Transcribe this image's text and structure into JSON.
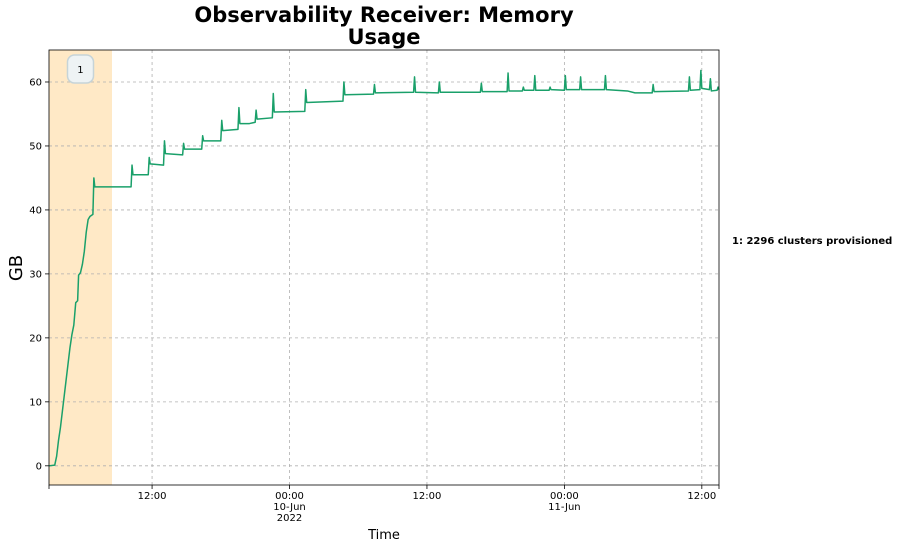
{
  "chart_data": {
    "type": "line",
    "title_lines": [
      "Observability Receiver: Memory",
      "Usage"
    ],
    "xlabel": "Time",
    "ylabel": "GB",
    "xlim": [
      "2022-06-09 03:00",
      "2022-06-11 13:30"
    ],
    "ylim": [
      -3,
      65
    ],
    "grid": true,
    "y_ticks": [
      0,
      10,
      20,
      30,
      40,
      50,
      60
    ],
    "x_ticks": [
      {
        "time": "2022-06-09 12:00",
        "lines": [
          "12:00"
        ]
      },
      {
        "time": "2022-06-10 00:00",
        "lines": [
          "00:00",
          "10-Jun",
          "2022"
        ]
      },
      {
        "time": "2022-06-10 12:00",
        "lines": [
          "12:00"
        ]
      },
      {
        "time": "2022-06-11 00:00",
        "lines": [
          "00:00",
          "11-Jun"
        ]
      },
      {
        "time": "2022-06-11 12:00",
        "lines": [
          "12:00"
        ]
      }
    ],
    "series": [
      {
        "color": "#1aa06a",
        "points": [
          [
            "2022-06-09 03:00",
            0.0
          ],
          [
            "2022-06-09 03:30",
            0.1
          ],
          [
            "2022-06-09 03:40",
            1.5
          ],
          [
            "2022-06-09 03:50",
            4.0
          ],
          [
            "2022-06-09 04:00",
            6.0
          ],
          [
            "2022-06-09 04:10",
            8.5
          ],
          [
            "2022-06-09 04:20",
            11.0
          ],
          [
            "2022-06-09 04:30",
            13.5
          ],
          [
            "2022-06-09 04:40",
            16.0
          ],
          [
            "2022-06-09 04:50",
            18.5
          ],
          [
            "2022-06-09 05:00",
            20.5
          ],
          [
            "2022-06-09 05:10",
            22.0
          ],
          [
            "2022-06-09 05:20",
            25.5
          ],
          [
            "2022-06-09 05:30",
            25.8
          ],
          [
            "2022-06-09 05:35",
            29.8
          ],
          [
            "2022-06-09 05:45",
            30.2
          ],
          [
            "2022-06-09 05:55",
            31.5
          ],
          [
            "2022-06-09 06:05",
            33.5
          ],
          [
            "2022-06-09 06:15",
            36.5
          ],
          [
            "2022-06-09 06:25",
            38.5
          ],
          [
            "2022-06-09 06:35",
            39.0
          ],
          [
            "2022-06-09 06:50",
            39.3
          ],
          [
            "2022-06-09 06:55",
            45.0
          ],
          [
            "2022-06-09 07:00",
            43.6
          ],
          [
            "2022-06-09 10:10",
            43.6
          ],
          [
            "2022-06-09 10:15",
            47.0
          ],
          [
            "2022-06-09 10:20",
            45.5
          ],
          [
            "2022-06-09 11:40",
            45.5
          ],
          [
            "2022-06-09 11:45",
            48.2
          ],
          [
            "2022-06-09 11:50",
            47.2
          ],
          [
            "2022-06-09 13:00",
            47.0
          ],
          [
            "2022-06-09 13:05",
            50.8
          ],
          [
            "2022-06-09 13:10",
            48.8
          ],
          [
            "2022-06-09 14:40",
            48.6
          ],
          [
            "2022-06-09 14:45",
            50.4
          ],
          [
            "2022-06-09 14:50",
            49.5
          ],
          [
            "2022-06-09 16:20",
            49.5
          ],
          [
            "2022-06-09 16:25",
            51.6
          ],
          [
            "2022-06-09 16:30",
            50.8
          ],
          [
            "2022-06-09 18:00",
            50.8
          ],
          [
            "2022-06-09 18:05",
            54.0
          ],
          [
            "2022-06-09 18:10",
            52.4
          ],
          [
            "2022-06-09 19:30",
            52.6
          ],
          [
            "2022-06-09 19:35",
            56.0
          ],
          [
            "2022-06-09 19:40",
            53.5
          ],
          [
            "2022-06-09 20:30",
            53.5
          ],
          [
            "2022-06-09 21:00",
            53.7
          ],
          [
            "2022-06-09 21:05",
            55.6
          ],
          [
            "2022-06-09 21:10",
            54.2
          ],
          [
            "2022-06-09 22:30",
            54.4
          ],
          [
            "2022-06-09 22:35",
            58.2
          ],
          [
            "2022-06-09 22:40",
            55.3
          ],
          [
            "2022-06-10 01:20",
            55.4
          ],
          [
            "2022-06-10 01:25",
            58.8
          ],
          [
            "2022-06-10 01:30",
            56.8
          ],
          [
            "2022-06-10 04:40",
            57.0
          ],
          [
            "2022-06-10 04:45",
            60.0
          ],
          [
            "2022-06-10 04:50",
            58.0
          ],
          [
            "2022-06-10 07:20",
            58.1
          ],
          [
            "2022-06-10 07:25",
            59.6
          ],
          [
            "2022-06-10 07:30",
            58.3
          ],
          [
            "2022-06-10 10:50",
            58.4
          ],
          [
            "2022-06-10 10:55",
            60.8
          ],
          [
            "2022-06-10 11:00",
            58.4
          ],
          [
            "2022-06-10 13:00",
            58.3
          ],
          [
            "2022-06-10 13:05",
            60.0
          ],
          [
            "2022-06-10 13:10",
            58.4
          ],
          [
            "2022-06-10 16:40",
            58.4
          ],
          [
            "2022-06-10 16:45",
            59.8
          ],
          [
            "2022-06-10 16:50",
            58.5
          ],
          [
            "2022-06-10 19:00",
            58.5
          ],
          [
            "2022-06-10 19:05",
            61.4
          ],
          [
            "2022-06-10 19:10",
            58.6
          ],
          [
            "2022-06-10 20:20",
            58.6
          ],
          [
            "2022-06-10 20:25",
            59.2
          ],
          [
            "2022-06-10 20:30",
            58.7
          ],
          [
            "2022-06-10 21:20",
            58.7
          ],
          [
            "2022-06-10 21:25",
            61.0
          ],
          [
            "2022-06-10 21:30",
            58.7
          ],
          [
            "2022-06-10 22:40",
            58.7
          ],
          [
            "2022-06-10 22:45",
            59.2
          ],
          [
            "2022-06-10 22:50",
            58.8
          ],
          [
            "2022-06-11 00:00",
            58.7
          ],
          [
            "2022-06-11 00:05",
            61.0
          ],
          [
            "2022-06-11 00:10",
            58.8
          ],
          [
            "2022-06-11 01:20",
            58.8
          ],
          [
            "2022-06-11 01:25",
            60.8
          ],
          [
            "2022-06-11 01:30",
            58.8
          ],
          [
            "2022-06-11 03:30",
            58.8
          ],
          [
            "2022-06-11 03:35",
            61.0
          ],
          [
            "2022-06-11 03:40",
            58.8
          ],
          [
            "2022-06-11 05:30",
            58.6
          ],
          [
            "2022-06-11 06:10",
            58.3
          ],
          [
            "2022-06-11 07:40",
            58.3
          ],
          [
            "2022-06-11 07:45",
            59.6
          ],
          [
            "2022-06-11 07:50",
            58.5
          ],
          [
            "2022-06-11 10:50",
            58.6
          ],
          [
            "2022-06-11 10:55",
            60.8
          ],
          [
            "2022-06-11 11:00",
            58.7
          ],
          [
            "2022-06-11 11:50",
            58.8
          ],
          [
            "2022-06-11 11:55",
            61.8
          ],
          [
            "2022-06-11 12:00",
            59.0
          ],
          [
            "2022-06-11 12:40",
            58.8
          ],
          [
            "2022-06-11 12:45",
            60.5
          ],
          [
            "2022-06-11 12:50",
            58.6
          ],
          [
            "2022-06-11 13:20",
            58.7
          ],
          [
            "2022-06-11 13:25",
            59.2
          ],
          [
            "2022-06-11 13:30",
            58.8
          ]
        ]
      }
    ],
    "shaded_regions": [
      {
        "start": "2022-06-09 03:00",
        "end": "2022-06-09 08:30",
        "color": "#ffe9c6",
        "badge": "1"
      }
    ],
    "annotation": "1: 2296 clusters provisioned"
  }
}
